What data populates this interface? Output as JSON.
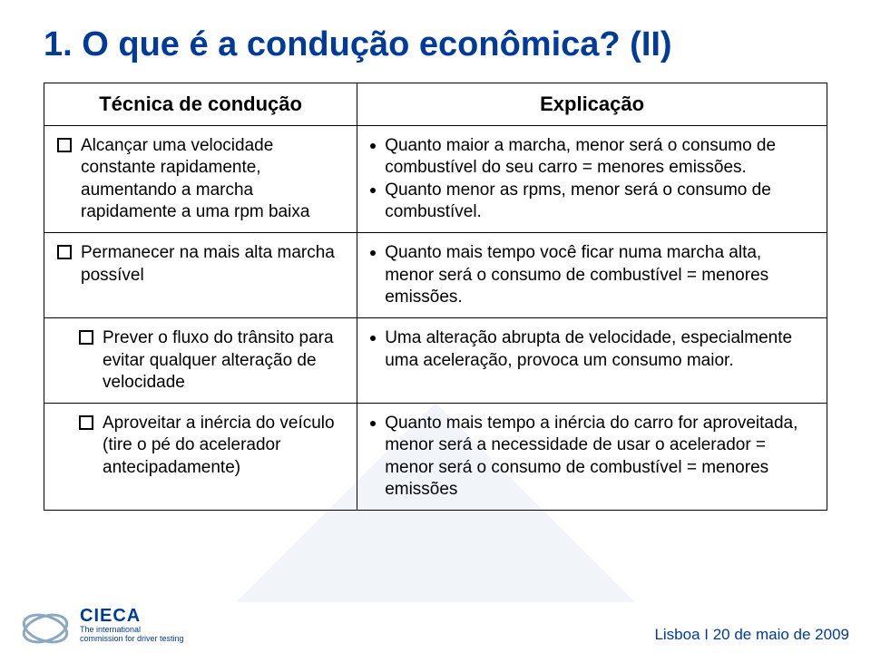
{
  "title": "1. O que é a condução econômica? (II)",
  "table": {
    "header_left": "Técnica de condução",
    "header_right": "Explicação",
    "rows": [
      {
        "left": {
          "text": "Alcançar uma velocidade constante rapidamente, aumentando a marcha rapidamente a uma rpm baixa",
          "indent": false
        },
        "right": [
          "Quanto maior a marcha, menor será o consumo de combustível do seu carro = menores emissões.",
          "Quanto menor as rpms, menor será o consumo de combustível."
        ]
      },
      {
        "left": {
          "text": "Permanecer na mais alta marcha possível",
          "indent": false
        },
        "right": [
          "Quanto mais tempo você ficar numa marcha alta, menor será o consumo de combustível = menores emissões."
        ]
      },
      {
        "left": {
          "text": "Prever o fluxo do trânsito para evitar qualquer alteração de velocidade",
          "indent": true
        },
        "right": [
          "Uma alteração abrupta de velocidade, especialmente uma aceleração, provoca um consumo maior."
        ]
      },
      {
        "left": {
          "text": "Aproveitar a inércia do veículo (tire o pé do acelerador antecipadamente)",
          "indent": true
        },
        "right": [
          "Quanto mais tempo a inércia do carro for aproveitada, menor será a necessidade de usar o acelerador = menor será o consumo de combustível = menores emissões"
        ]
      }
    ]
  },
  "logo": {
    "word": "CIECA",
    "tag1": "The international",
    "tag2": "commission for driver testing"
  },
  "footer_right": "Lisboa I 20 de maio de 2009",
  "colors": {
    "title": "#003b9a",
    "text": "#000000",
    "border": "#000000",
    "logo_ellipse": "#8aa7c4"
  }
}
